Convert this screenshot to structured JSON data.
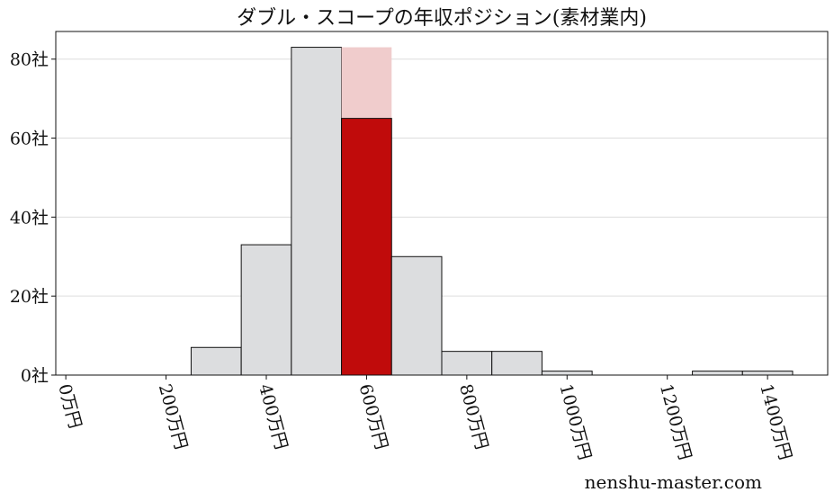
{
  "chart_data": {
    "type": "bar",
    "title": "ダブル・スコープの年収ポジション(素材業内)",
    "xlabel": "",
    "ylabel": "",
    "bin_edges": [
      250,
      350,
      450,
      550,
      650,
      750,
      850,
      950,
      1050,
      1150,
      1250,
      1350,
      1450
    ],
    "values": [
      7,
      33,
      83,
      65,
      30,
      6,
      6,
      1,
      0,
      0,
      1,
      1
    ],
    "highlight": {
      "bin": [
        550,
        650
      ],
      "value": 65,
      "background_value": 83,
      "color": "#c00b0b",
      "background_color": "#f0cccc"
    },
    "bar_color": "#dcdddf",
    "xlim": [
      -20,
      1520
    ],
    "ylim": [
      0,
      87
    ],
    "xticks": [
      0,
      200,
      400,
      600,
      800,
      1000,
      1200,
      1400
    ],
    "xtick_labels": [
      "0万円",
      "200万円",
      "400万円",
      "600万円",
      "800万円",
      "1000万円",
      "1200万円",
      "1400万円"
    ],
    "yticks": [
      0,
      20,
      40,
      60,
      80
    ],
    "ytick_labels": [
      "0社",
      "20社",
      "40社",
      "60社",
      "80社"
    ],
    "grid": "y",
    "watermark": "nenshu-master.com"
  }
}
